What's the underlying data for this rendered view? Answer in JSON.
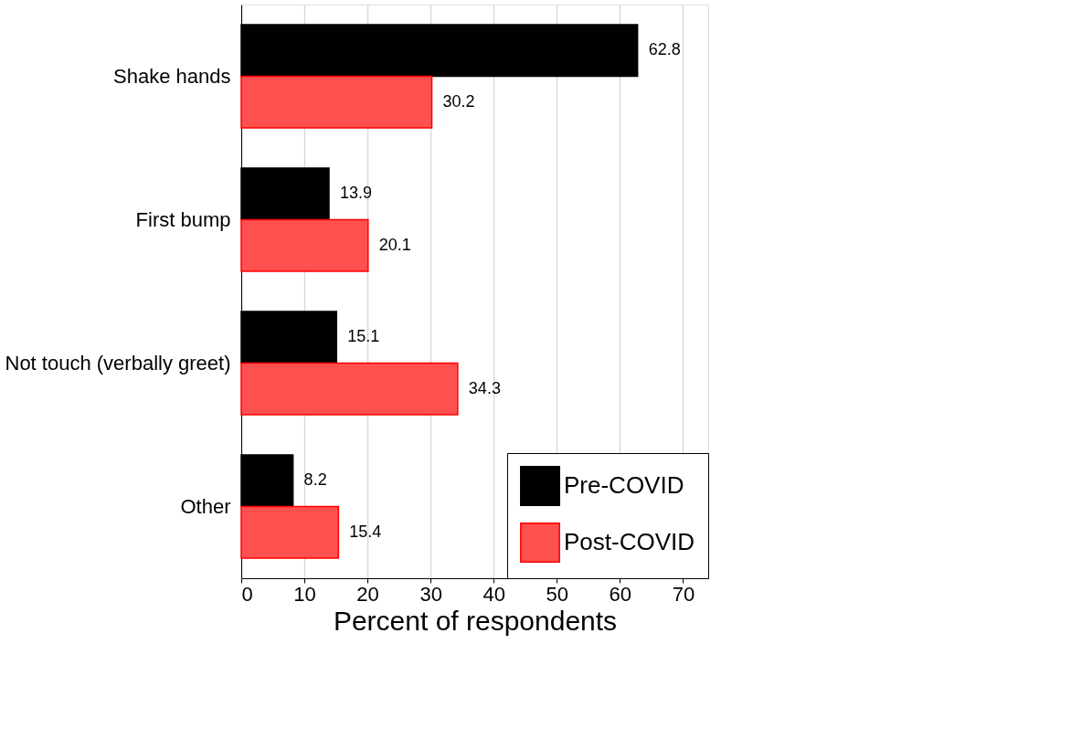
{
  "chart_data": {
    "type": "bar",
    "orientation": "horizontal",
    "xlabel": "Percent of respondents",
    "categories": [
      "Shake hands",
      "First bump",
      "Not touch (verbally greet)",
      "Other"
    ],
    "series": [
      {
        "name": "Pre-COVID",
        "color": "#000000",
        "values": [
          62.8,
          13.9,
          15.1,
          8.2
        ]
      },
      {
        "name": "Post-COVID",
        "color": "#ff5050",
        "values": [
          30.2,
          20.1,
          34.3,
          15.4
        ]
      }
    ],
    "xlim": [
      0,
      74
    ],
    "xticks": [
      0,
      10,
      20,
      30,
      40,
      50,
      60,
      70
    ],
    "grid": "x",
    "legend": "bottom right",
    "data_labels": true
  }
}
